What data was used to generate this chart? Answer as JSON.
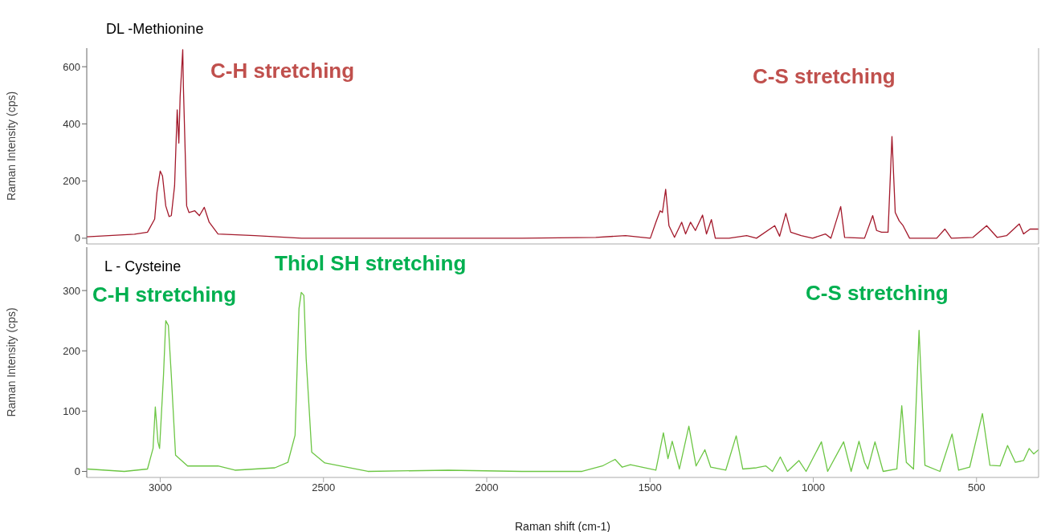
{
  "chart_data": [
    {
      "type": "line",
      "title": "DL -Methionine",
      "ylabel": "Raman Intensity (cps)",
      "annotations": [
        "C-H stretching",
        "C-S stretching"
      ],
      "xlim": [
        3225,
        310
      ],
      "xticks": [
        3000,
        2500,
        2000,
        1500,
        1000,
        500
      ],
      "ylim": [
        -20,
        665
      ],
      "yticks": [
        0,
        200,
        400,
        600
      ],
      "tick_labels": "y",
      "series": [
        {
          "color": "#a3192b",
          "x": [
            3225,
            3079,
            3039,
            3017,
            3010,
            3000,
            2993,
            2983,
            2973,
            2966,
            2956,
            2948,
            2943,
            2939,
            2931,
            2929,
            2919,
            2912,
            2894,
            2880,
            2865,
            2850,
            2823,
            2710,
            2567,
            1892,
            1666,
            1575,
            1499,
            1482,
            1469,
            1462,
            1452,
            1442,
            1425,
            1403,
            1391,
            1376,
            1361,
            1339,
            1327,
            1312,
            1300,
            1258,
            1204,
            1174,
            1118,
            1103,
            1084,
            1069,
            1037,
            1002,
            963,
            946,
            916,
            904,
            843,
            818,
            806,
            791,
            771,
            759,
            749,
            737,
            725,
            705,
            622,
            597,
            577,
            511,
            469,
            437,
            408,
            369,
            356,
            336,
            310
          ],
          "values": [
            5,
            14,
            21,
            67,
            160,
            235,
            218,
            113,
            76,
            79,
            183,
            449,
            333,
            495,
            660,
            530,
            113,
            90,
            96,
            79,
            108,
            56,
            15,
            9,
            0,
            0,
            3,
            9,
            0,
            56,
            96,
            90,
            171,
            44,
            3,
            56,
            15,
            56,
            27,
            81,
            15,
            65,
            0,
            0,
            9,
            0,
            44,
            7,
            87,
            21,
            9,
            0,
            15,
            0,
            111,
            3,
            0,
            79,
            27,
            21,
            21,
            356,
            90,
            61,
            44,
            0,
            0,
            32,
            0,
            3,
            44,
            3,
            9,
            50,
            15,
            32,
            32
          ]
        }
      ]
    },
    {
      "type": "line",
      "title": "L - Cysteine",
      "xlabel": "Raman shift (cm-1)",
      "ylabel": "Raman Intensity (cps)",
      "annotations": [
        "Thiol SH stretching",
        "C-H stretching",
        "C-S stretching"
      ],
      "xlim": [
        3225,
        310
      ],
      "xticks": [
        3000,
        2500,
        2000,
        1500,
        1000,
        500
      ],
      "ylim": [
        -10,
        372
      ],
      "yticks": [
        0,
        100,
        200,
        300
      ],
      "series": [
        {
          "color": "#6cc644",
          "x": [
            3223,
            3110,
            3039,
            3022,
            3015,
            3007,
            3002,
            2990,
            2983,
            2975,
            2966,
            2953,
            2916,
            2823,
            2771,
            2649,
            2609,
            2587,
            2575,
            2568,
            2560,
            2553,
            2536,
            2496,
            2364,
            2118,
            1892,
            1708,
            1646,
            1607,
            1585,
            1560,
            1482,
            1459,
            1445,
            1432,
            1410,
            1381,
            1359,
            1332,
            1314,
            1268,
            1236,
            1216,
            1174,
            1145,
            1125,
            1101,
            1079,
            1044,
            1022,
            975,
            956,
            907,
            884,
            860,
            843,
            833,
            811,
            786,
            744,
            729,
            715,
            693,
            676,
            658,
            612,
            575,
            555,
            521,
            482,
            459,
            428,
            405,
            381,
            356,
            339,
            325,
            310
          ],
          "values": [
            4,
            0,
            4,
            38,
            107,
            49,
            38,
            159,
            250,
            242,
            159,
            27,
            9,
            9,
            2,
            6,
            15,
            60,
            270,
            297,
            292,
            187,
            32,
            14,
            0,
            2,
            0,
            0,
            9,
            20,
            7,
            11,
            2,
            64,
            21,
            50,
            4,
            75,
            9,
            36,
            7,
            2,
            59,
            4,
            6,
            9,
            0,
            24,
            0,
            18,
            0,
            49,
            0,
            49,
            0,
            50,
            15,
            4,
            49,
            0,
            4,
            109,
            15,
            4,
            234,
            10,
            0,
            62,
            2,
            7,
            96,
            10,
            9,
            43,
            15,
            18,
            38,
            29,
            36
          ]
        }
      ]
    }
  ]
}
